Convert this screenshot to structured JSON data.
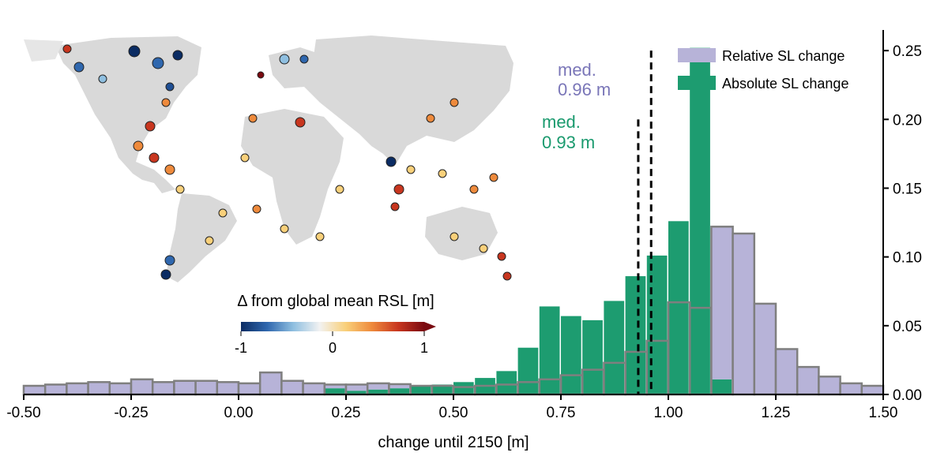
{
  "chart_data": {
    "type": "bar",
    "title": "",
    "xlabel": "change until 2150 [m]",
    "ylabel": "",
    "xlim": [
      -0.5,
      1.5
    ],
    "ylim": [
      0,
      0.265
    ],
    "bin_width": 0.05,
    "x_ticks": [
      -0.5,
      -0.25,
      0.0,
      0.25,
      0.5,
      0.75,
      1.0,
      1.25,
      1.5
    ],
    "x_tick_labels": [
      "-0.50",
      "-0.25",
      "0.00",
      "0.25",
      "0.50",
      "0.75",
      "1.00",
      "1.25",
      "1.50"
    ],
    "y_ticks": [
      0.0,
      0.05,
      0.1,
      0.15,
      0.2,
      0.25
    ],
    "y_tick_labels": [
      "0.00",
      "0.05",
      "0.10",
      "0.15",
      "0.20",
      "0.25"
    ],
    "y_axis_side": "right",
    "series": [
      {
        "name": "Relative SL change",
        "color": "#b7b3d8",
        "bins_start": -0.5,
        "values": [
          0.0063,
          0.0072,
          0.0081,
          0.009,
          0.0081,
          0.011,
          0.009,
          0.0099,
          0.0099,
          0.009,
          0.0081,
          0.016,
          0.0099,
          0.0081,
          0.0072,
          0.0072,
          0.0081,
          0.0075,
          0.0063,
          0.0063,
          0.0054,
          0.0063,
          0.0072,
          0.009,
          0.011,
          0.014,
          0.018,
          0.023,
          0.031,
          0.039,
          0.067,
          0.063,
          0.122,
          0.117,
          0.066,
          0.033,
          0.02,
          0.013,
          0.0081,
          0.0063
        ]
      },
      {
        "name": "Absolute SL change",
        "color": "#1d9c70",
        "bins_start": 0.2,
        "values": [
          0.0045,
          0.0027,
          0.0036,
          0.0045,
          0.0063,
          0.0072,
          0.009,
          0.012,
          0.017,
          0.034,
          0.064,
          0.057,
          0.054,
          0.068,
          0.086,
          0.101,
          0.126,
          0.252,
          0.011,
          0.0
        ]
      }
    ],
    "medians": [
      {
        "series": "Relative SL change",
        "x": 0.96,
        "label_line1": "med.",
        "label_line2": "0.96 m"
      },
      {
        "series": "Absolute SL change",
        "x": 0.93,
        "label_line1": "med.",
        "label_line2": "0.93 m"
      }
    ],
    "legend": {
      "position": "top-right",
      "entries": [
        "Relative SL change",
        "Absolute SL change"
      ]
    },
    "inset_map": {
      "colorbar_title": "Δ from global mean RSL [m]",
      "colorbar_ticks": [
        "-1",
        "0",
        "1"
      ],
      "colormap": [
        "#0b2c63",
        "#2f67ae",
        "#8fbfe0",
        "#f2f2f2",
        "#f9d07a",
        "#ee8a3c",
        "#c8361f",
        "#7a0a10"
      ]
    }
  }
}
